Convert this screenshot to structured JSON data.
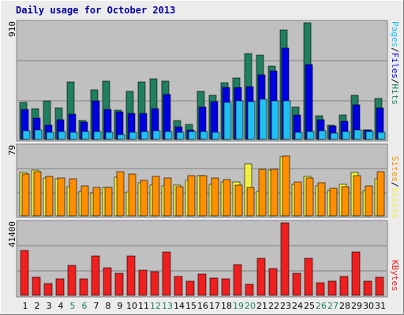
{
  "title": "Daily usage for October 2013",
  "colors": {
    "background": "#ececec",
    "panel": "#c0c0c0",
    "border": "#7f7f7f",
    "title": "#00009f",
    "hits": "#1f7f5f",
    "files": "#0000e0",
    "pages": "#20c0f0",
    "visits": "#f0f040",
    "sites": "#ff8f00",
    "kbytes": "#ef1f1f",
    "weekend": "#1f7f5f",
    "weekday": "#000000",
    "gridline": "#808080"
  },
  "legend": {
    "hits": "Hits",
    "files": "Files",
    "pages": "Pages",
    "visits": "Visits",
    "sites": "Sites",
    "kbytes": "KBytes",
    "sep": "/"
  },
  "chart_data": {
    "type": "bar",
    "categories": [
      "1",
      "2",
      "3",
      "4",
      "5",
      "6",
      "7",
      "8",
      "9",
      "10",
      "11",
      "12",
      "13",
      "14",
      "15",
      "16",
      "17",
      "18",
      "19",
      "20",
      "21",
      "22",
      "23",
      "24",
      "25",
      "26",
      "27",
      "28",
      "29",
      "30",
      "31"
    ],
    "weekend_days": [
      "5",
      "6",
      "12",
      "13",
      "19",
      "20",
      "26",
      "27"
    ],
    "panels": [
      {
        "id": "top",
        "ymax_label": "910",
        "ymax": 910,
        "series": [
          {
            "name": "Hits",
            "values": [
              286,
              241,
              303,
              248,
              448,
              146,
              388,
              457,
              225,
              374,
              446,
              472,
              457,
              146,
              114,
              372,
              345,
              442,
              478,
              670,
              658,
              570,
              853,
              254,
              910,
              184,
              108,
              189,
              347,
              76,
              318
            ]
          },
          {
            "name": "Files",
            "values": [
              235,
              163,
              113,
              152,
              198,
              133,
              304,
              235,
              213,
              202,
              200,
              240,
              352,
              100,
              71,
              251,
              295,
              405,
              405,
              409,
              502,
              537,
              715,
              191,
              586,
              154,
              104,
              140,
              269,
              76,
              244
            ]
          },
          {
            "name": "Pages",
            "values": [
              66,
              75,
              57,
              63,
              57,
              63,
              63,
              57,
              38,
              57,
              63,
              66,
              63,
              57,
              63,
              60,
              57,
              291,
              304,
              295,
              311,
              304,
              304,
              54,
              63,
              66,
              51,
              63,
              76,
              63,
              57
            ]
          }
        ]
      },
      {
        "id": "middle",
        "ymax_label": "79",
        "ymax": 79,
        "series": [
          {
            "name": "Visits",
            "values": [
              49,
              52,
              43,
              42,
              33,
              28,
              26,
              32,
              44,
              27,
              38,
              35,
              34,
              35,
              40,
              46,
              36,
              39,
              39,
              59,
              28,
              52,
              67,
              36,
              45,
              34,
              29,
              36,
              49,
              29,
              42
            ]
          },
          {
            "name": "Sites",
            "values": [
              48,
              50,
              45,
              43,
              42,
              34,
              32,
              32,
              50,
              48,
              40,
              45,
              43,
              33,
              46,
              46,
              43,
              41,
              35,
              32,
              53,
              53,
              68,
              39,
              43,
              38,
              31,
              33,
              46,
              34,
              50
            ]
          }
        ]
      },
      {
        "id": "bottom",
        "ymax_label": "41400",
        "ymax": 41400,
        "series": [
          {
            "name": "KBytes",
            "values": [
              25700,
              10200,
              6600,
              9600,
              17000,
              9600,
              22700,
              15700,
              12400,
              22700,
              14500,
              13700,
              24700,
              10600,
              8000,
              12000,
              10100,
              9600,
              17600,
              6400,
              21000,
              15100,
              41400,
              12800,
              21000,
              7100,
              8000,
              11000,
              24700,
              8000,
              10300
            ]
          }
        ]
      }
    ]
  }
}
